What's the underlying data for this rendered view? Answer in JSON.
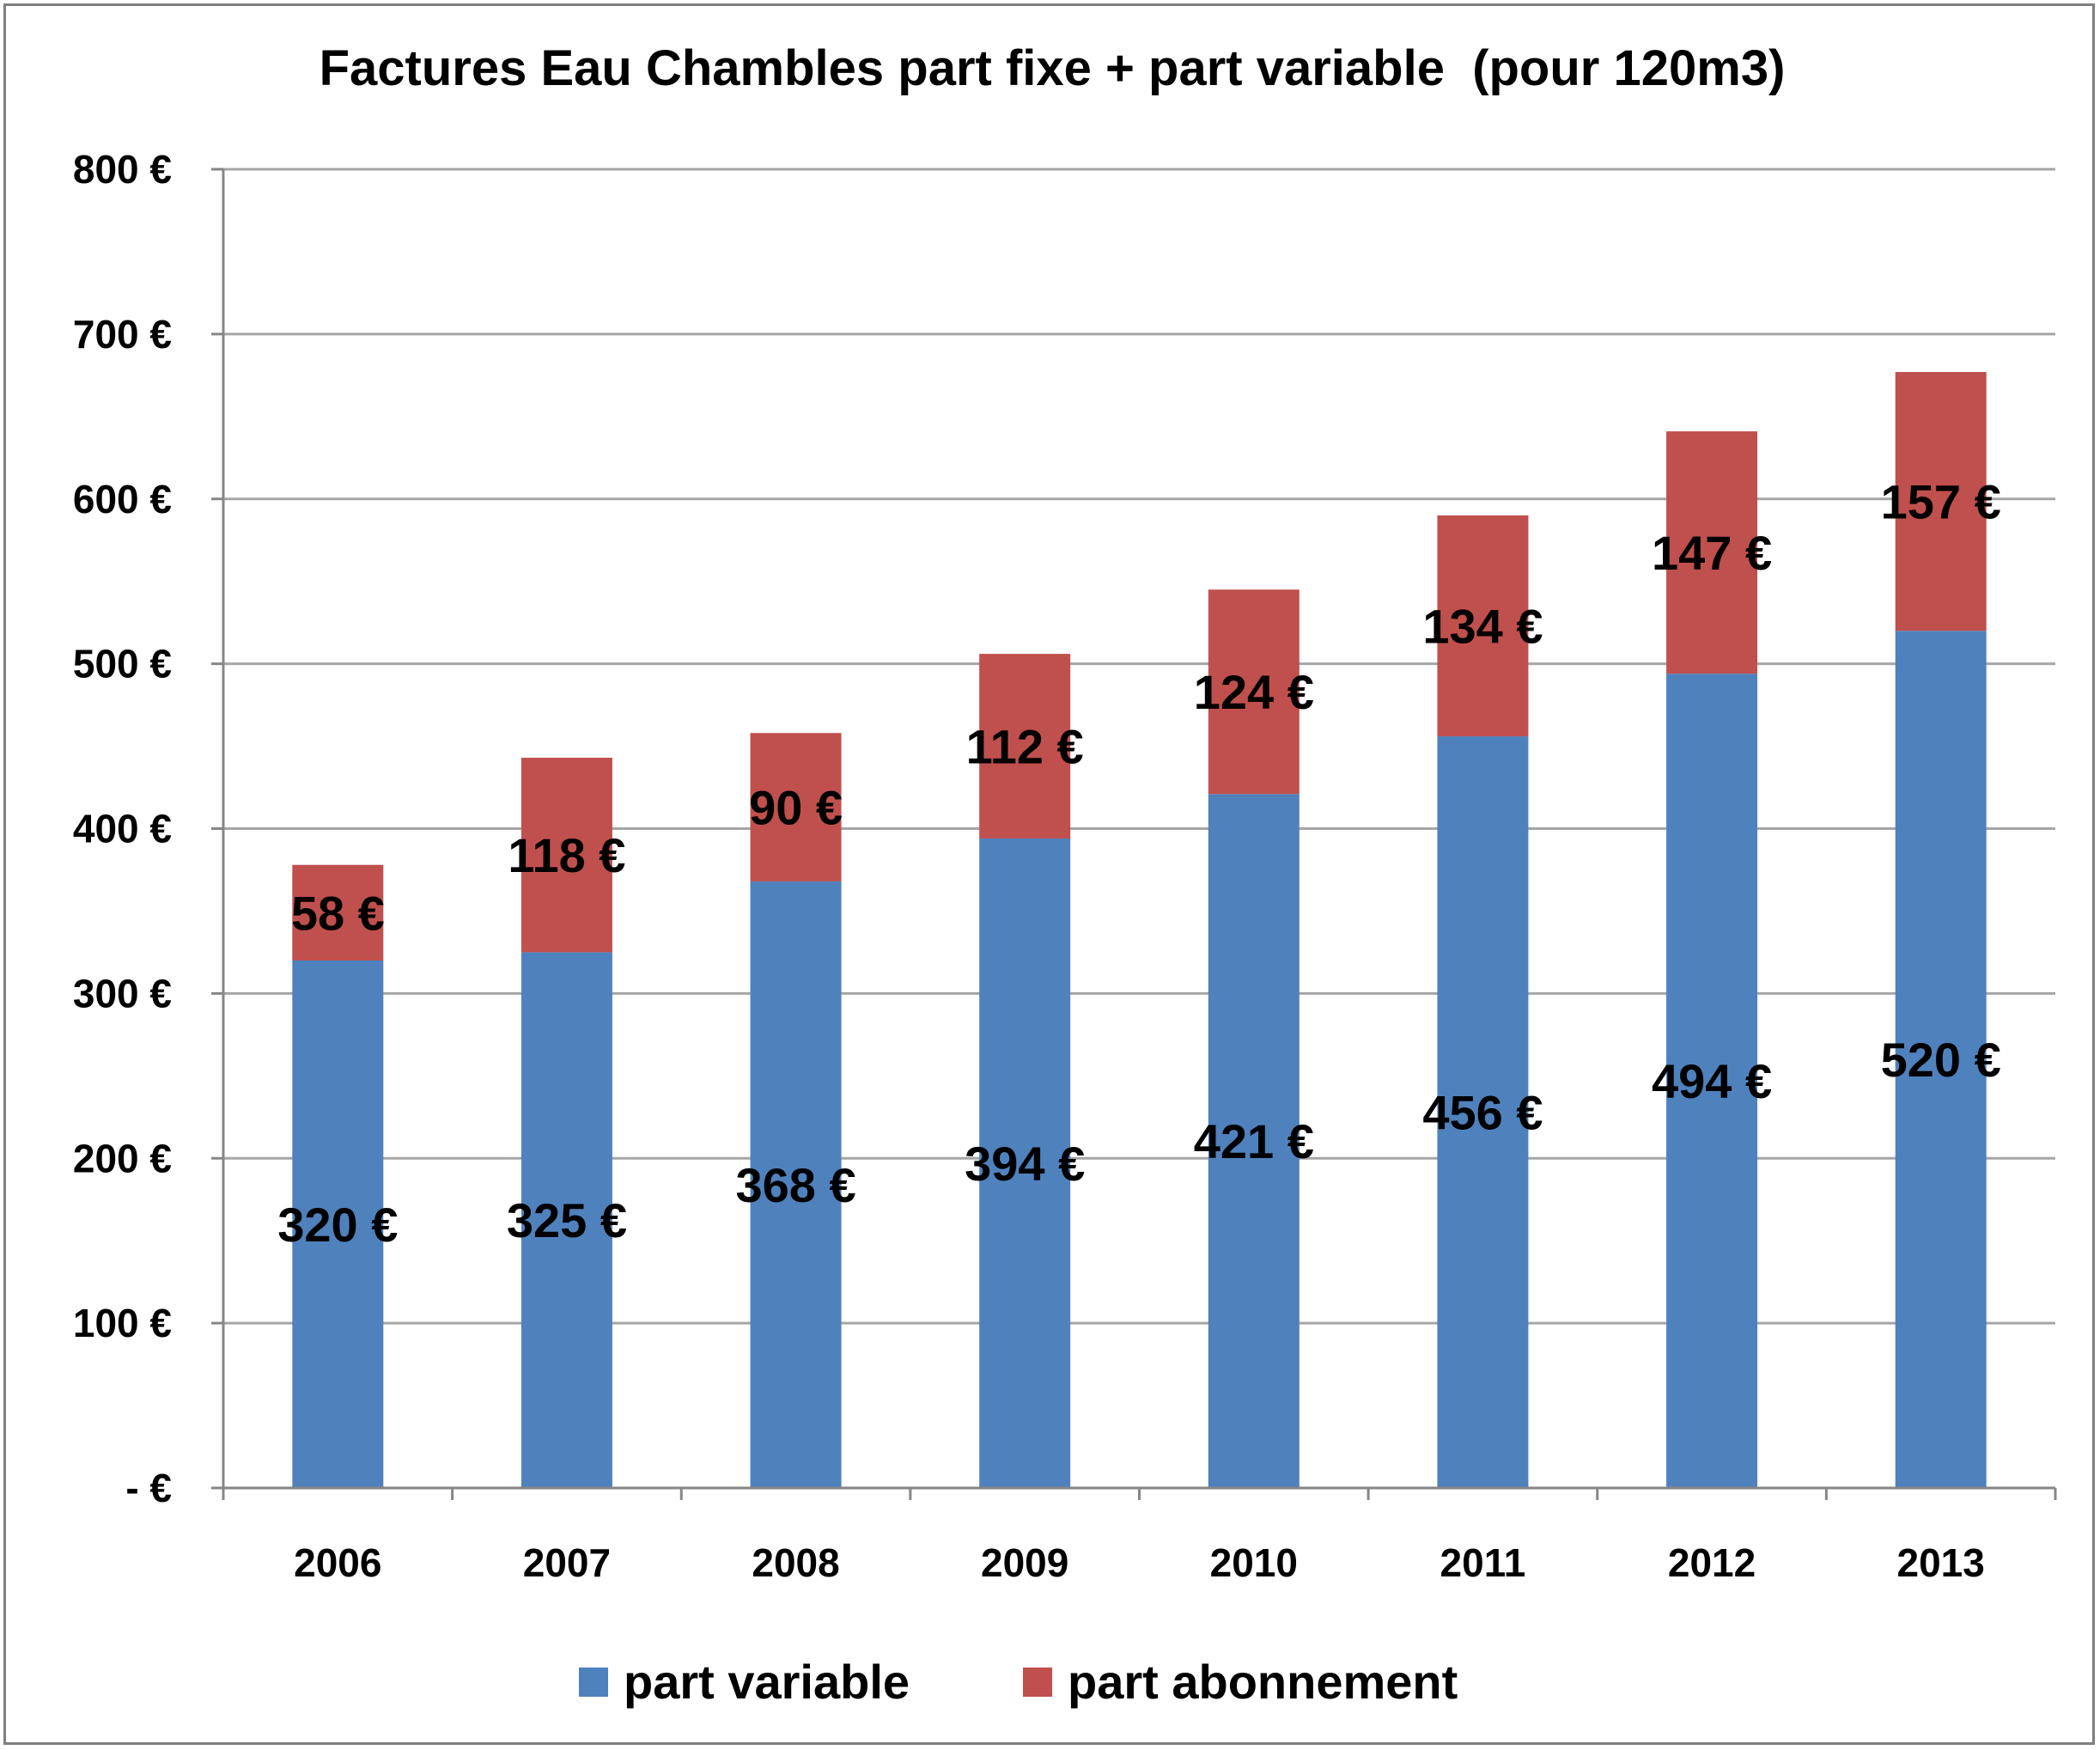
{
  "chart_data": {
    "type": "bar",
    "stacked": true,
    "title": "Factures Eau Chambles part fixe + part variable  (pour 120m3)",
    "categories": [
      "2006",
      "2007",
      "2008",
      "2009",
      "2010",
      "2011",
      "2012",
      "2013"
    ],
    "series": [
      {
        "name": "part variable",
        "color": "#4F81BD",
        "values": [
          320,
          325,
          368,
          394,
          421,
          456,
          494,
          520
        ],
        "labels": [
          "320 €",
          "325 €",
          "368 €",
          "394 €",
          "421 €",
          "456 €",
          "494 €",
          "520 €"
        ]
      },
      {
        "name": "part abonnement",
        "color": "#C0504D",
        "values": [
          58,
          118,
          90,
          112,
          124,
          134,
          147,
          157
        ],
        "labels": [
          "58 €",
          "118 €",
          "90 €",
          "112 €",
          "124 €",
          "134 €",
          "147 €",
          "157 €"
        ]
      }
    ],
    "ylim": [
      0,
      800
    ],
    "y_ticks": [
      0,
      100,
      200,
      300,
      400,
      500,
      600,
      700,
      800
    ],
    "y_tick_labels": [
      "- €",
      "100 €",
      "200 €",
      "300 €",
      "400 €",
      "500 €",
      "600 €",
      "700 €",
      "800 €"
    ],
    "xlabel": "",
    "ylabel": "",
    "grid": true,
    "legend": "bottom"
  }
}
